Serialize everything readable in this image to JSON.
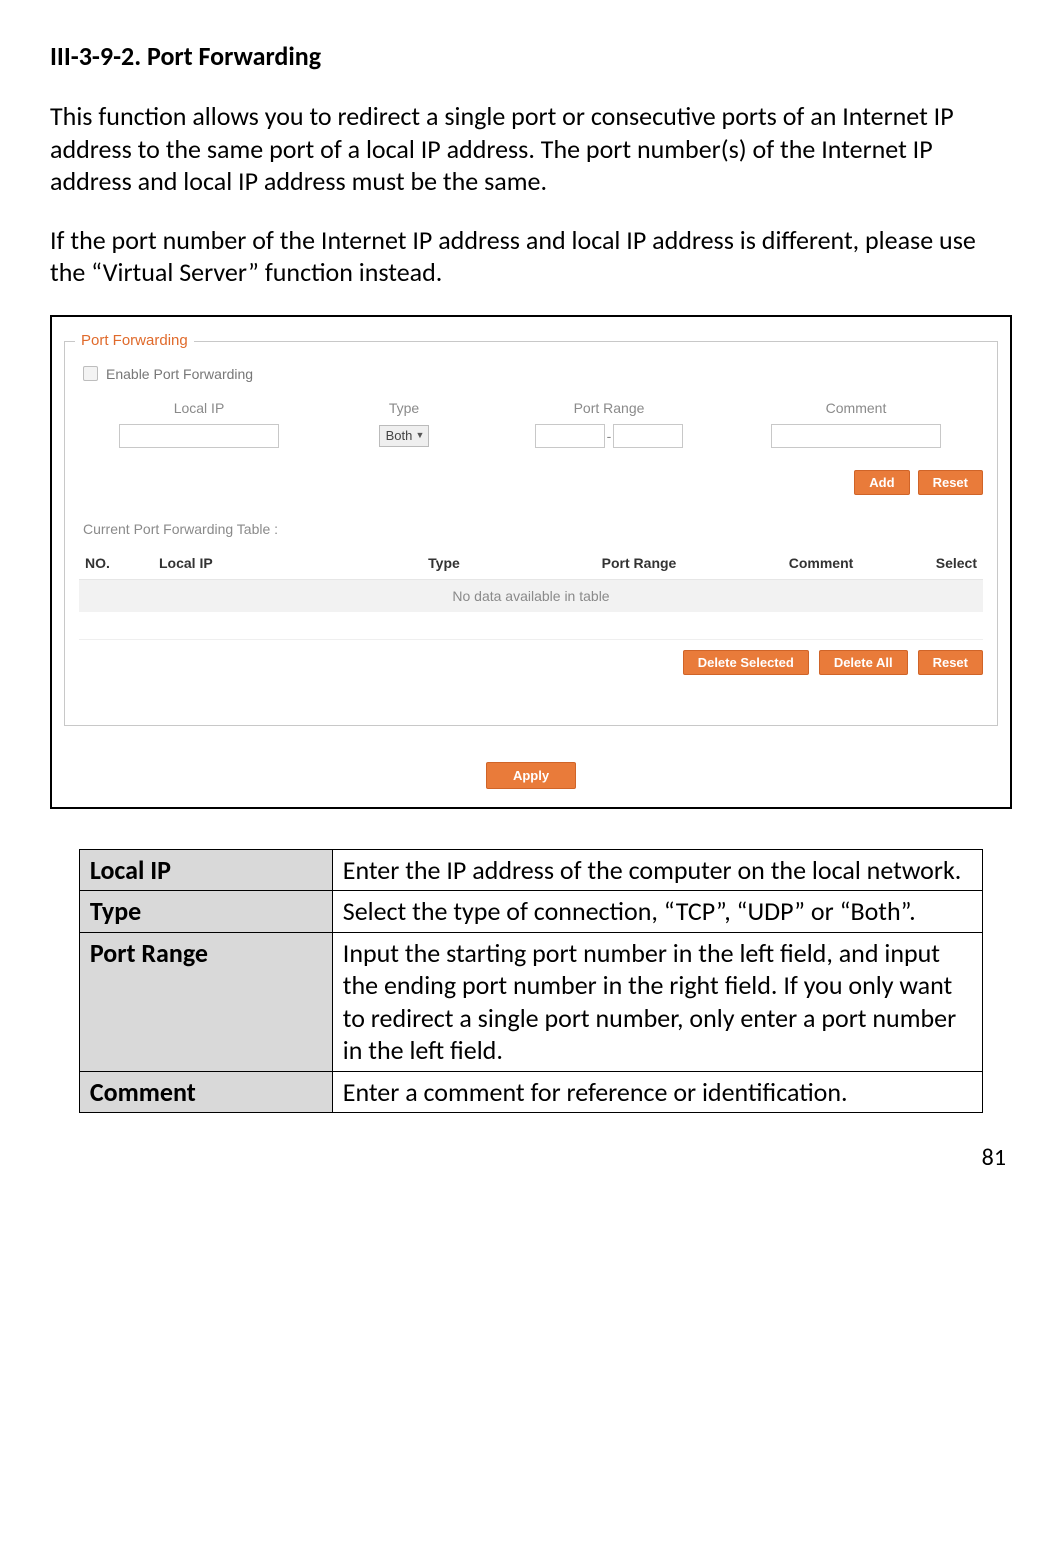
{
  "heading": "III-3-9-2.    Port Forwarding",
  "para1": "This function allows you to redirect a single port or consecutive ports of an Internet IP address to the same port of a local IP address. The port number(s) of the Internet IP address and local IP address must be the same.",
  "para2": "If the port number of the Internet IP address and local IP address is different, please use the “Virtual Server” function instead.",
  "screenshot": {
    "legend": "Port Forwarding",
    "enable_label": "Enable Port Forwarding",
    "form_headers": {
      "local_ip": "Local IP",
      "type": "Type",
      "port_range": "Port Range",
      "comment": "Comment"
    },
    "type_value": "Both",
    "add_btn": "Add",
    "reset_btn": "Reset",
    "current_table_label": "Current Port Forwarding Table  :",
    "table_headers": {
      "no": "NO.",
      "local_ip": "Local IP",
      "type": "Type",
      "port_range": "Port Range",
      "comment": "Comment",
      "select": "Select"
    },
    "empty_text": "No data available in table",
    "delete_selected_btn": "Delete Selected",
    "delete_all_btn": "Delete All",
    "reset2_btn": "Reset",
    "apply_btn": "Apply"
  },
  "desc_table": {
    "rows": [
      {
        "key": "Local IP",
        "val": "Enter the IP address of the computer on the local network."
      },
      {
        "key": "Type",
        "val": "Select the type of connection, “TCP”, “UDP” or “Both”."
      },
      {
        "key": "Port Range",
        "val": "Input the starting port number in the left field, and input the ending port number in the right field. If you only want to redirect a single port number, only enter a port number in the left field."
      },
      {
        "key": "Comment",
        "val": "Enter a comment for reference or identification."
      }
    ]
  },
  "page_number": "81",
  "colors": {
    "accent": "#e97b3a",
    "legend": "#e06a2b",
    "mutetext": "#8a8a8a",
    "tableheader_bg": "#d9d9d9"
  }
}
